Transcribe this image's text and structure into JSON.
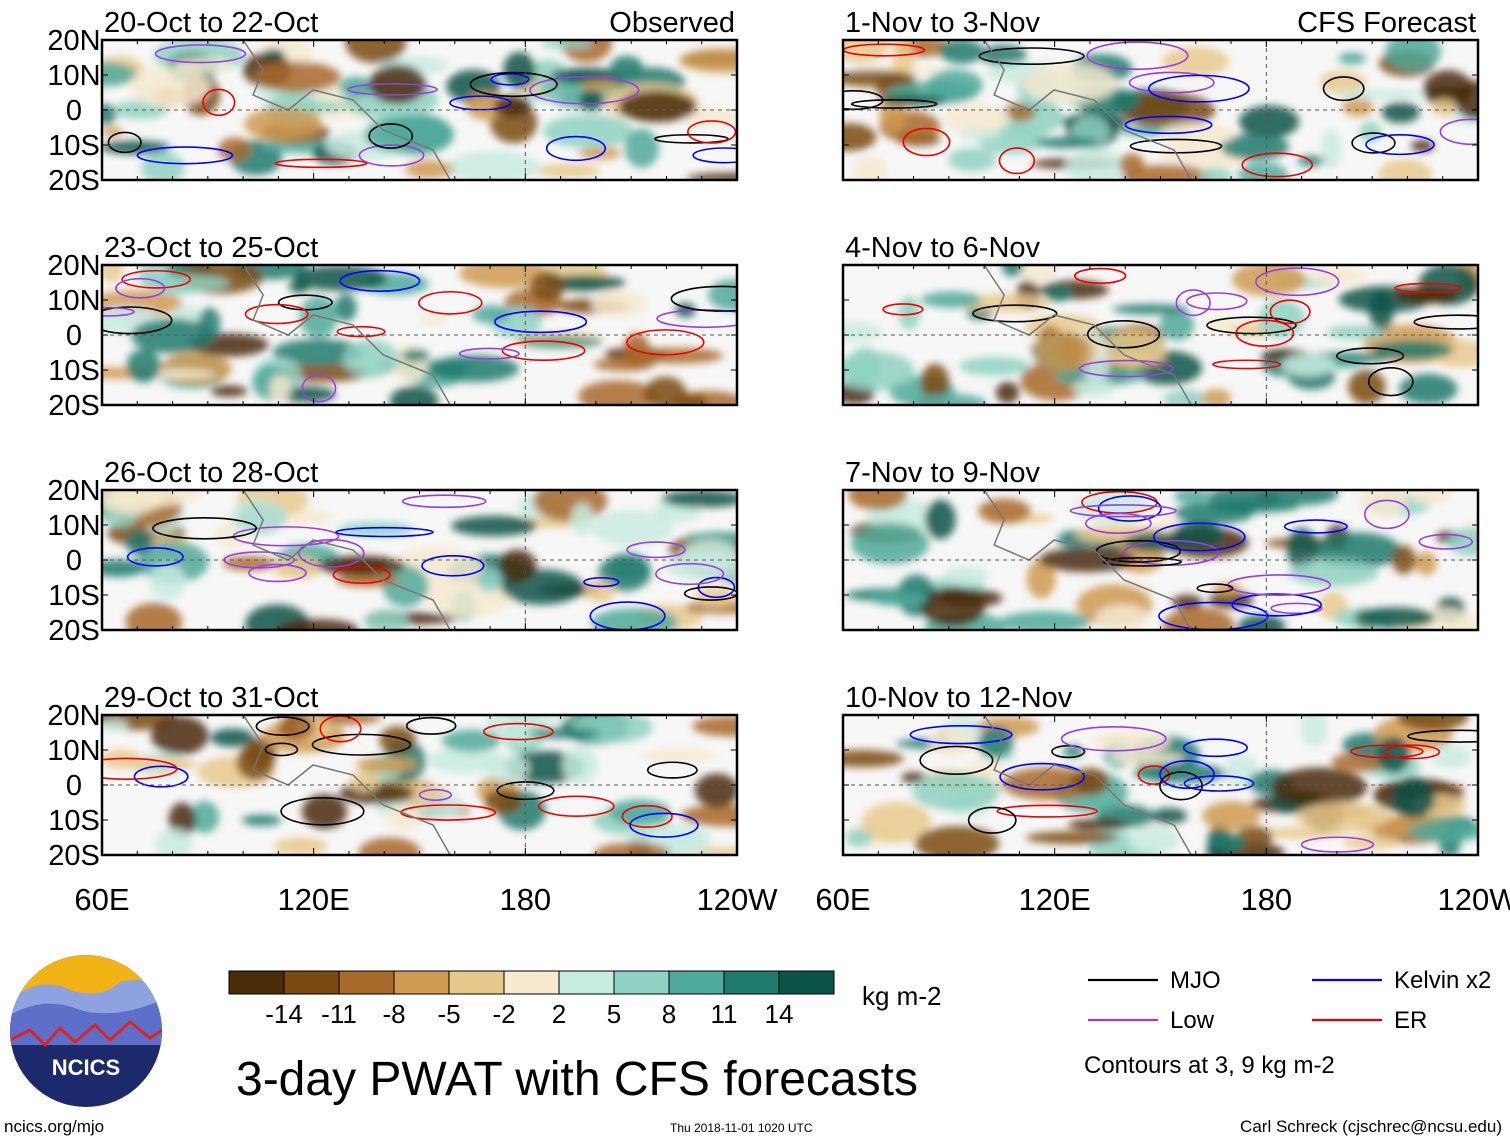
{
  "chart_data": {
    "type": "heatmap",
    "title": "3-day PWAT with CFS forecasts",
    "units": "kg m-2",
    "observed_label": "Observed",
    "forecast_label": "CFS Forecast",
    "lat_ticks": [
      "20N",
      "10N",
      "0",
      "10S",
      "20S"
    ],
    "lat_values": [
      20,
      10,
      0,
      -10,
      -20
    ],
    "lon_ticks": [
      "60E",
      "120E",
      "180",
      "120W"
    ],
    "lon_values": [
      60,
      120,
      180,
      240
    ],
    "lon_range": [
      60,
      240
    ],
    "lat_range": [
      -20,
      20
    ],
    "panels": [
      {
        "label": "20-Oct to 22-Oct",
        "group": "observed"
      },
      {
        "label": "23-Oct to 25-Oct",
        "group": "observed"
      },
      {
        "label": "26-Oct to 28-Oct",
        "group": "observed"
      },
      {
        "label": "29-Oct to 31-Oct",
        "group": "observed"
      },
      {
        "label": "1-Nov to 3-Nov",
        "group": "forecast"
      },
      {
        "label": "4-Nov to 6-Nov",
        "group": "forecast"
      },
      {
        "label": "7-Nov to 9-Nov",
        "group": "forecast"
      },
      {
        "label": "10-Nov to 12-Nov",
        "group": "forecast"
      }
    ],
    "colorbar": {
      "labels": [
        "-14",
        "-11",
        "-8",
        "-5",
        "-2",
        "2",
        "5",
        "8",
        "11",
        "14"
      ],
      "colors": [
        "#4a2c08",
        "#7a4a12",
        "#a8692a",
        "#cf9a52",
        "#e8c98d",
        "#f6ead0",
        "#f7f7f7",
        "#c8ebe1",
        "#8fd1c2",
        "#4fa99a",
        "#1f7a6c",
        "#0c5449"
      ]
    },
    "legend": [
      {
        "name": "MJO",
        "color": "#000000"
      },
      {
        "name": "Kelvin x2",
        "color": "#0000ff"
      },
      {
        "name": "Low",
        "color": "#9a3ee0"
      },
      {
        "name": "ER",
        "color": "#ee0000"
      }
    ],
    "contour_note": "Contours at 3, 9 kg m-2"
  },
  "footer": {
    "logo_text": "NCICS",
    "url": "ncics.org/mjo",
    "timestamp": "Thu 2018-11-01 1020 UTC",
    "credit": "Carl Schreck (cjschrec@ncsu.edu)"
  }
}
